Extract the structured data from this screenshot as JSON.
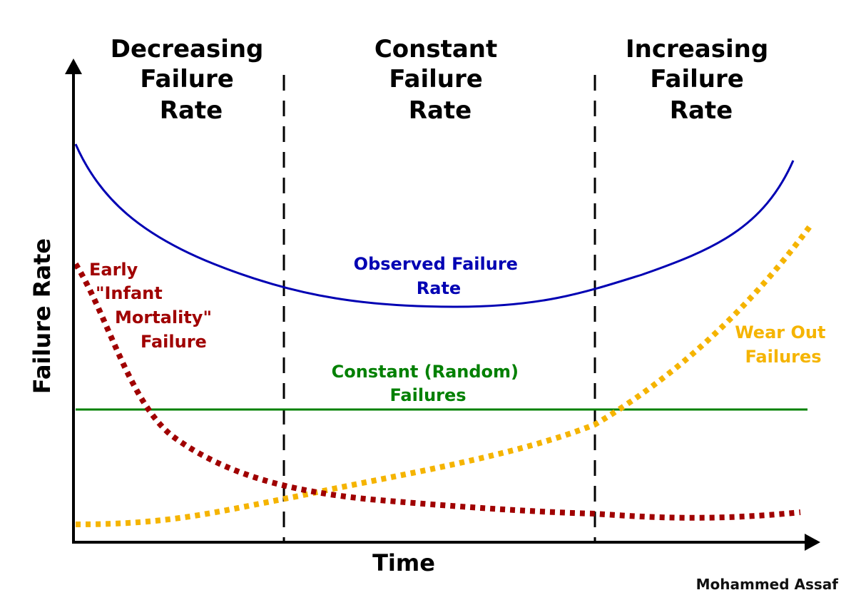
{
  "regions": [
    {
      "lines": [
        "Decreasing",
        "Failure",
        "Rate"
      ]
    },
    {
      "lines": [
        "Constant",
        "Failure",
        "Rate"
      ]
    },
    {
      "lines": [
        "Increasing",
        "Failure",
        "Rate"
      ]
    }
  ],
  "axes": {
    "x_label": "Time",
    "y_label": "Failure Rate"
  },
  "curves": {
    "observed": {
      "lines": [
        "Observed Failure",
        "Rate"
      ],
      "color": "#0000b3"
    },
    "infant": {
      "lines": [
        "Early",
        "\"Infant",
        "Mortality\"",
        "Failure"
      ],
      "color": "#a00000"
    },
    "constant": {
      "lines": [
        "Constant (Random)",
        "Failures"
      ],
      "color": "#008000"
    },
    "wearout": {
      "lines": [
        "Wear Out",
        "Failures"
      ],
      "color": "#f5b400"
    }
  },
  "credit": "Mohammed Assaf",
  "colors": {
    "axis": "#000000",
    "divider": "#000000"
  }
}
